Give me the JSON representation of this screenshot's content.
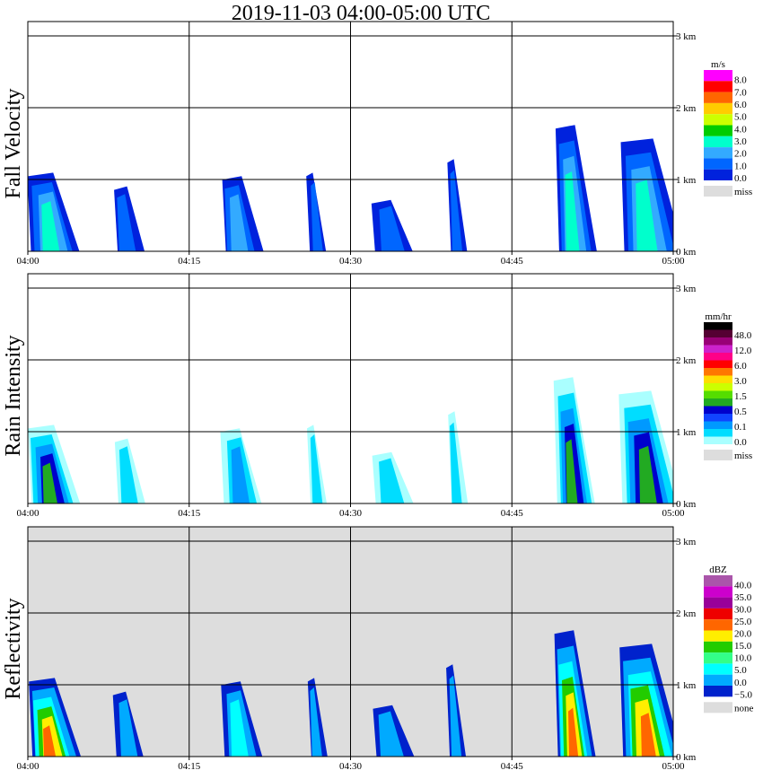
{
  "chart_data": {
    "type": "heatmap",
    "title": "2019-11-03   04:00-05:00 UTC",
    "x_ticks": [
      "04:00",
      "04:15",
      "04:30",
      "04:45",
      "05:00"
    ],
    "y_ticks": [
      "3 km",
      "2 km",
      "1 km",
      "0 km"
    ],
    "xlim": [
      "04:00",
      "05:00"
    ],
    "ylim_km": [
      0,
      3.4
    ],
    "grid": true,
    "panels": [
      {
        "ylabel": "Fall Velocity",
        "colorbar_unit": "m/s",
        "colorbar_labels": [
          "8.0",
          "7.0",
          "6.0",
          "5.0",
          "4.0",
          "3.0",
          "2.0",
          "1.0",
          "0.0"
        ],
        "colorbar_colors": [
          "#ff00ff",
          "#ff0000",
          "#ff6600",
          "#ffcc00",
          "#ccff00",
          "#00cc00",
          "#00ffcc",
          "#33aaff",
          "#0066ff",
          "#0022dd"
        ],
        "missing_label": "miss",
        "missing_color": "#dddddd",
        "background_color": "#ffffff"
      },
      {
        "ylabel": "Rain Intensity",
        "colorbar_unit": "mm/hr",
        "colorbar_labels": [
          "48.0",
          "12.0",
          "6.0",
          "3.0",
          "1.5",
          "0.5",
          "0.1",
          "0.0"
        ],
        "colorbar_colors": [
          "#000000",
          "#550033",
          "#990077",
          "#cc22cc",
          "#ff0088",
          "#ff0000",
          "#ff7700",
          "#ffdd00",
          "#ccff00",
          "#55dd00",
          "#22aa22",
          "#0000cc",
          "#1144ff",
          "#0099ff",
          "#00ddff",
          "#aaffff"
        ],
        "missing_label": "miss",
        "missing_color": "#dddddd",
        "background_color": "#ffffff"
      },
      {
        "ylabel": "Reflectivity",
        "colorbar_unit": "dBZ",
        "colorbar_labels": [
          "40.0",
          "35.0",
          "30.0",
          "25.0",
          "20.0",
          "15.0",
          "10.0",
          "5.0",
          "0.0",
          "−5.0"
        ],
        "colorbar_colors": [
          "#aa55aa",
          "#cc00cc",
          "#990099",
          "#ee0000",
          "#ff6600",
          "#ffee00",
          "#22cc00",
          "#33ff88",
          "#00ffff",
          "#00aaff",
          "#0022cc"
        ],
        "missing_label": "none",
        "missing_color": "#dddddd",
        "background_color": "#dddddd"
      }
    ],
    "echo_cells": [
      {
        "start": "04:00",
        "end": "04:04",
        "top_km": 1.1,
        "core": "strong"
      },
      {
        "start": "04:08",
        "end": "04:10",
        "top_km": 0.9,
        "core": "weak"
      },
      {
        "start": "04:18",
        "end": "04:21",
        "top_km": 1.05,
        "core": "moderate"
      },
      {
        "start": "04:26",
        "end": "04:27",
        "top_km": 1.1,
        "core": "weak"
      },
      {
        "start": "04:32",
        "end": "04:35",
        "top_km": 0.7,
        "core": "weak"
      },
      {
        "start": "04:39",
        "end": "04:40",
        "top_km": 1.3,
        "core": "weak"
      },
      {
        "start": "04:49",
        "end": "04:52",
        "top_km": 1.8,
        "core": "strong"
      },
      {
        "start": "04:55",
        "end": "05:00",
        "top_km": 1.6,
        "core": "strong"
      }
    ]
  }
}
